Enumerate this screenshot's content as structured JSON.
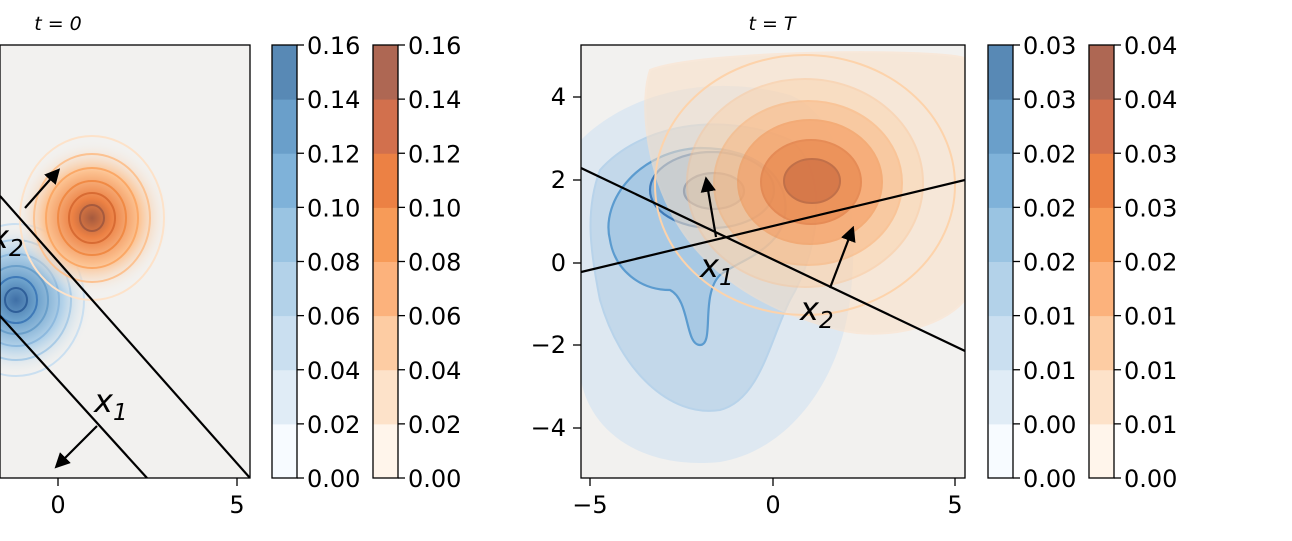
{
  "chart_data": [
    {
      "type": "contour",
      "title": "t = 0",
      "x_tick_labels": [
        "0",
        "5"
      ],
      "y_tick_labels": [],
      "xlim": [
        -1.6,
        5.1
      ],
      "ylim": [
        -5.2,
        5.2
      ],
      "series": [
        {
          "color": "blue",
          "center": [
            -1.1,
            -1.2
          ],
          "spread": [
            1.0,
            1.0
          ]
        },
        {
          "color": "orange",
          "center": [
            1.0,
            1.2
          ],
          "spread": [
            1.0,
            1.0
          ]
        }
      ],
      "lines": [
        {
          "from": [
            -1.6,
            1.6
          ],
          "to": [
            5.1,
            -5.2
          ]
        },
        {
          "from": [
            -1.6,
            -1.1
          ],
          "to": [
            2.4,
            -5.2
          ]
        }
      ],
      "annotations": [
        {
          "label_base": "x",
          "label_sub": "1",
          "position": [
            1.2,
            -3.5
          ]
        },
        {
          "label_base": "x",
          "label_sub": "2",
          "position": [
            -1.6,
            0.3
          ]
        }
      ],
      "colorbars": [
        {
          "cmap": "blue",
          "tick_labels": [
            "0.00",
            "0.02",
            "0.04",
            "0.06",
            "0.08",
            "0.10",
            "0.12",
            "0.14",
            "0.16"
          ]
        },
        {
          "cmap": "orange",
          "tick_labels": [
            "0.00",
            "0.02",
            "0.04",
            "0.06",
            "0.08",
            "0.10",
            "0.12",
            "0.14",
            "0.16"
          ]
        }
      ]
    },
    {
      "type": "contour",
      "title": "t = T",
      "x_tick_labels": [
        "−5",
        "0",
        "5"
      ],
      "y_tick_labels": [
        "−4",
        "−2",
        "0",
        "2",
        "4"
      ],
      "xlim": [
        -5.3,
        5.3
      ],
      "ylim": [
        -5.2,
        5.2
      ],
      "series": [
        {
          "color": "blue",
          "center": [
            -1.6,
            1.8
          ],
          "spread": [
            1.4,
            1.2
          ]
        },
        {
          "color": "orange",
          "center": [
            1.0,
            2.0
          ],
          "spread": [
            1.6,
            1.4
          ]
        }
      ],
      "lines": [
        {
          "from": [
            -5.3,
            -0.3
          ],
          "to": [
            5.3,
            2.2
          ]
        },
        {
          "from": [
            -5.3,
            2.3
          ],
          "to": [
            5.3,
            -2.1
          ]
        }
      ],
      "annotations": [
        {
          "label_base": "x",
          "label_sub": "1",
          "position": [
            -1.6,
            -0.2
          ]
        },
        {
          "label_base": "x",
          "label_sub": "2",
          "position": [
            1.2,
            -1.1
          ]
        }
      ],
      "colorbars": [
        {
          "cmap": "blue",
          "tick_labels": [
            "0.00",
            "0.00",
            "0.01",
            "0.01",
            "0.02",
            "0.02",
            "0.02",
            "0.03",
            "0.03"
          ]
        },
        {
          "cmap": "orange",
          "tick_labels": [
            "0.00",
            "0.01",
            "0.01",
            "0.01",
            "0.02",
            "0.03",
            "0.03",
            "0.04",
            "0.04"
          ]
        }
      ]
    }
  ],
  "colors": {
    "blue_scale": [
      "#f7fbff",
      "#e0ecf6",
      "#cadff0",
      "#b3d2e9",
      "#9ac4e2",
      "#7fb2d9",
      "#6a9fca",
      "#5889b5"
    ],
    "orange_scale": [
      "#fff5eb",
      "#fde2c9",
      "#fdcca3",
      "#fcb27c",
      "#f79b58",
      "#ec8144",
      "#d2704d",
      "#ae6753"
    ],
    "plot_background": "#f2f1ef",
    "line": "#000000"
  }
}
